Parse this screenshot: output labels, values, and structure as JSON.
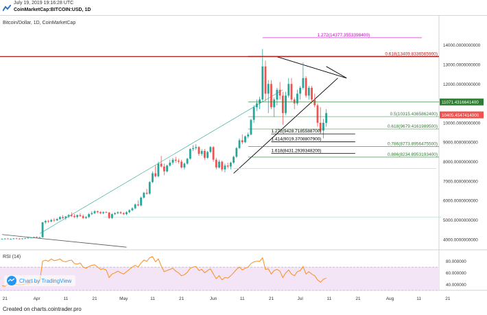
{
  "header": {
    "timestamp": "July 19, 2019 19:16:28 UTC",
    "symbol": "CoinMarketCap:BITCOIN:USD, 1D"
  },
  "chart": {
    "legend": "Bitcoin/Dollar, 1D, CoinMarketCap",
    "rsi_label": "RSI (14)",
    "watermark": "Chart by TradingView",
    "price_tag": "10405.4547414000",
    "level_tag": "11071.4316641400"
  },
  "footer": {
    "text": "Created on charts.cointrader.pro"
  },
  "colors": {
    "up": "#26a69a",
    "down": "#ef5350",
    "rsi_line": "#ff8c1a",
    "rsi_band": "#f3e5f5",
    "fib_red": "#b71c1c",
    "fib_green": "#2e7d32",
    "fib_magenta": "#c000c0"
  },
  "chart_data": {
    "type": "candlestick",
    "title": "Bitcoin/Dollar, 1D, CoinMarketCap",
    "ylim": [
      3500,
      14800
    ],
    "y_ticks": [
      "14000.0000000000",
      "13000.0000000000",
      "12000.0000000000",
      "11000.0000000000",
      "10000.0000000000",
      "9000.0000000000",
      "8000.0000000000",
      "7000.0000000000",
      "6000.0000000000",
      "5000.0000000000",
      "4000.0000000000"
    ],
    "x_ticks": [
      {
        "label": "21",
        "date": "2019-03-21"
      },
      {
        "label": "Apr",
        "date": "2019-04-01"
      },
      {
        "label": "11",
        "date": "2019-04-11"
      },
      {
        "label": "21",
        "date": "2019-04-21"
      },
      {
        "label": "May",
        "date": "2019-05-01"
      },
      {
        "label": "11",
        "date": "2019-05-11"
      },
      {
        "label": "21",
        "date": "2019-05-21"
      },
      {
        "label": "Jun",
        "date": "2019-06-01"
      },
      {
        "label": "11",
        "date": "2019-06-11"
      },
      {
        "label": "21",
        "date": "2019-06-21"
      },
      {
        "label": "Jul",
        "date": "2019-07-01"
      },
      {
        "label": "11",
        "date": "2019-07-11"
      },
      {
        "label": "21",
        "date": "2019-07-21"
      },
      {
        "label": "Aug",
        "date": "2019-08-01"
      },
      {
        "label": "11",
        "date": "2019-08-11"
      },
      {
        "label": "21",
        "date": "2019-08-21"
      }
    ],
    "candle_start_date": "2019-03-20",
    "candles": [
      [
        4020,
        4050,
        3990,
        4030
      ],
      [
        4030,
        4060,
        4000,
        4040
      ],
      [
        4040,
        4070,
        4010,
        4020
      ],
      [
        4020,
        4050,
        3990,
        4030
      ],
      [
        4030,
        4060,
        4000,
        4050
      ],
      [
        4050,
        4080,
        4020,
        4040
      ],
      [
        4040,
        4070,
        4000,
        4030
      ],
      [
        4030,
        4060,
        4000,
        4050
      ],
      [
        4050,
        4080,
        4020,
        4060
      ],
      [
        4060,
        4100,
        4030,
        4080
      ],
      [
        4080,
        4110,
        4050,
        4100
      ],
      [
        4100,
        4140,
        4060,
        4120
      ],
      [
        4120,
        4160,
        4080,
        4100
      ],
      [
        4100,
        4140,
        4060,
        4110
      ],
      [
        4110,
        4900,
        4100,
        4880
      ],
      [
        4880,
        5000,
        4800,
        4950
      ],
      [
        4950,
        5000,
        4850,
        4920
      ],
      [
        4920,
        5050,
        4880,
        5000
      ],
      [
        5000,
        5100,
        4900,
        4980
      ],
      [
        4980,
        5100,
        4950,
        5050
      ],
      [
        5050,
        5200,
        5000,
        5150
      ],
      [
        5150,
        5250,
        5050,
        5100
      ],
      [
        5100,
        5200,
        5000,
        5180
      ],
      [
        5180,
        5300,
        5100,
        5250
      ],
      [
        5250,
        5400,
        5150,
        5200
      ],
      [
        5200,
        5300,
        5100,
        5150
      ],
      [
        5150,
        5280,
        5080,
        5250
      ],
      [
        5250,
        5350,
        5150,
        5200
      ],
      [
        5200,
        5280,
        5050,
        5100
      ],
      [
        5100,
        5200,
        5050,
        5150
      ],
      [
        5150,
        5350,
        5100,
        5300
      ],
      [
        5300,
        5450,
        5250,
        5350
      ],
      [
        5350,
        5500,
        5300,
        5450
      ],
      [
        5450,
        5480,
        5350,
        5400
      ],
      [
        5400,
        5450,
        5300,
        5350
      ],
      [
        5350,
        5450,
        5300,
        5400
      ],
      [
        5400,
        5450,
        5350,
        5380
      ],
      [
        5380,
        5420,
        5050,
        5100
      ],
      [
        5100,
        5350,
        5050,
        5300
      ],
      [
        5300,
        5400,
        5250,
        5350
      ],
      [
        5350,
        5450,
        5300,
        5400
      ],
      [
        5400,
        5450,
        5300,
        5350
      ],
      [
        5350,
        5400,
        5250,
        5300
      ],
      [
        5300,
        5450,
        5250,
        5400
      ],
      [
        5400,
        5550,
        5350,
        5500
      ],
      [
        5500,
        5650,
        5450,
        5600
      ],
      [
        5600,
        5850,
        5550,
        5800
      ],
      [
        5800,
        6000,
        5700,
        5750
      ],
      [
        5750,
        6200,
        5700,
        6150
      ],
      [
        6150,
        6450,
        6100,
        6400
      ],
      [
        6400,
        6600,
        6300,
        6350
      ],
      [
        6350,
        7000,
        6300,
        6950
      ],
      [
        6950,
        7500,
        6900,
        7400
      ],
      [
        7400,
        7800,
        7200,
        7250
      ],
      [
        7250,
        8000,
        7200,
        7900
      ],
      [
        7900,
        8300,
        7700,
        7750
      ],
      [
        7750,
        7900,
        7300,
        7500
      ],
      [
        7500,
        7850,
        7450,
        7800
      ],
      [
        7800,
        8100,
        7750,
        7950
      ],
      [
        7950,
        8200,
        7850,
        8100
      ],
      [
        8100,
        8250,
        7950,
        8050
      ],
      [
        8050,
        8150,
        7900,
        8000
      ],
      [
        8000,
        8100,
        7650,
        7700
      ],
      [
        7700,
        7950,
        7600,
        7900
      ],
      [
        7900,
        8200,
        7850,
        8150
      ],
      [
        8150,
        8700,
        8100,
        8650
      ],
      [
        8650,
        8850,
        8550,
        8700
      ],
      [
        8700,
        8900,
        8600,
        8750
      ],
      [
        8750,
        8800,
        8300,
        8400
      ],
      [
        8400,
        8650,
        8300,
        8550
      ],
      [
        8550,
        8650,
        8100,
        8200
      ],
      [
        8200,
        8550,
        8150,
        8500
      ],
      [
        8500,
        8800,
        8450,
        8750
      ],
      [
        8750,
        8800,
        8000,
        8100
      ],
      [
        8100,
        8200,
        7600,
        7700
      ],
      [
        7700,
        8100,
        7650,
        8000
      ],
      [
        8000,
        8050,
        7500,
        7600
      ],
      [
        7600,
        7900,
        7450,
        7800
      ],
      [
        7800,
        7950,
        7650,
        7750
      ],
      [
        7750,
        8000,
        7600,
        7950
      ],
      [
        7950,
        8300,
        7900,
        8250
      ],
      [
        8250,
        8750,
        8200,
        8700
      ],
      [
        8700,
        9200,
        8650,
        9100
      ],
      [
        9100,
        9400,
        8900,
        9000
      ],
      [
        9000,
        9350,
        8950,
        9300
      ],
      [
        9300,
        9500,
        9200,
        9400
      ],
      [
        9400,
        10200,
        9350,
        10150
      ],
      [
        10150,
        10900,
        10000,
        10800
      ],
      [
        10800,
        11200,
        10600,
        11000
      ],
      [
        11000,
        11350,
        10700,
        11200
      ],
      [
        11200,
        13800,
        11100,
        12900
      ],
      [
        12900,
        13200,
        11100,
        11500
      ],
      [
        11500,
        12200,
        10500,
        12000
      ],
      [
        12000,
        12200,
        10700,
        10800
      ],
      [
        10800,
        11300,
        10300,
        11200
      ],
      [
        11200,
        11800,
        10900,
        11700
      ],
      [
        11700,
        12100,
        11200,
        11400
      ],
      [
        11400,
        11600,
        9900,
        10500
      ],
      [
        10500,
        11600,
        10400,
        11400
      ],
      [
        11400,
        12300,
        11300,
        12000
      ],
      [
        12000,
        12300,
        11100,
        11200
      ],
      [
        11200,
        11300,
        10700,
        11000
      ],
      [
        11000,
        11700,
        10900,
        11500
      ],
      [
        11500,
        11900,
        11200,
        11800
      ],
      [
        11800,
        13100,
        11700,
        12300
      ],
      [
        12300,
        12400,
        11300,
        11400
      ],
      [
        11400,
        11900,
        11200,
        11800
      ],
      [
        11800,
        11900,
        11000,
        11200
      ],
      [
        11200,
        11500,
        10800,
        10900
      ],
      [
        10900,
        11000,
        9800,
        10000
      ],
      [
        10000,
        10800,
        9500,
        9600
      ],
      [
        9600,
        10200,
        9200,
        10000
      ],
      [
        10000,
        10700,
        9800,
        10500
      ]
    ],
    "rsi": [
      38,
      37,
      40,
      39,
      41,
      40,
      39,
      40,
      41,
      42,
      43,
      45,
      44,
      45,
      80,
      82,
      80,
      84,
      81,
      82,
      84,
      80,
      79,
      81,
      82,
      76,
      75,
      77,
      70,
      68,
      71,
      73,
      74,
      70,
      66,
      67,
      65,
      52,
      58,
      60,
      63,
      60,
      58,
      62,
      66,
      70,
      73,
      70,
      77,
      82,
      80,
      86,
      88,
      79,
      84,
      72,
      62,
      64,
      66,
      68,
      63,
      60,
      55,
      57,
      61,
      68,
      70,
      71,
      64,
      66,
      60,
      64,
      67,
      58,
      50,
      55,
      48,
      52,
      51,
      55,
      60,
      66,
      70,
      65,
      68,
      70,
      76,
      79,
      80,
      80,
      86,
      66,
      67,
      58,
      64,
      66,
      63,
      52,
      60,
      65,
      58,
      55,
      62,
      64,
      71,
      58,
      62,
      58,
      55,
      48,
      44,
      49,
      51
    ],
    "rsi_ylim": [
      30,
      95
    ],
    "rsi_ticks": [
      "80.000000",
      "60.000000",
      "40.000000"
    ],
    "rsi_band": [
      30,
      70
    ],
    "fib_levels": [
      {
        "label": "1.272(14377.3553398400)",
        "value": 14377.36,
        "color": "#c000c0",
        "side": "center"
      },
      {
        "label": "0.618(13409.8336565900)",
        "value": 13409.83,
        "color": "#b71c1c",
        "side": "right"
      },
      {
        "label": "0.5(10315.4365862400)",
        "value": 10315.44,
        "color": "#2e7d32",
        "side": "right"
      },
      {
        "label": "0.618(9679.4161989500)",
        "value": 9679.42,
        "color": "#2e7d32",
        "side": "right"
      },
      {
        "label": "1.272(9428.7185588700)",
        "value": 9428.72,
        "color": "#000000",
        "side": "left"
      },
      {
        "label": "1.414(9019.3708807900)",
        "value": 9019.37,
        "color": "#000000",
        "side": "left"
      },
      {
        "label": "0.786(8773.8956475500)",
        "value": 8773.9,
        "color": "#2e7d32",
        "side": "right"
      },
      {
        "label": "1.618(8431.2939348200)",
        "value": 8431.29,
        "color": "#000000",
        "side": "left"
      },
      {
        "label": "0.886(8234.8953193400)",
        "value": 8234.9,
        "color": "#2e7d32",
        "side": "right"
      }
    ]
  }
}
